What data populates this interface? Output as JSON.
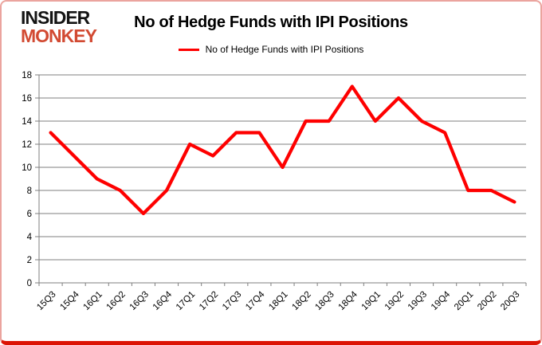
{
  "logo": {
    "line1": "INSIDER",
    "line2": "MONKEY",
    "line1_color": "#141414",
    "line2_color": "#d24a32"
  },
  "chart_data": {
    "type": "line",
    "title": "No of Hedge Funds with IPI Positions",
    "legend_position": "top",
    "categories": [
      "15Q3",
      "15Q4",
      "16Q1",
      "16Q2",
      "16Q3",
      "16Q4",
      "17Q1",
      "17Q2",
      "17Q3",
      "17Q4",
      "18Q1",
      "18Q2",
      "18Q3",
      "18Q4",
      "19Q1",
      "19Q2",
      "19Q3",
      "19Q4",
      "20Q1",
      "20Q2",
      "20Q3"
    ],
    "series": [
      {
        "name": "No of Hedge Funds with IPI Positions",
        "color": "#fe0000",
        "values": [
          13,
          11,
          9,
          8,
          6,
          8,
          12,
          11,
          13,
          13,
          10,
          14,
          14,
          17,
          14,
          16,
          14,
          13,
          8,
          8,
          7
        ]
      }
    ],
    "ylim": [
      0,
      18
    ],
    "ytick_step": 2,
    "grid": true,
    "gridline_color": "#7f7f7f",
    "axis_color": "#7f7f7f",
    "tick_label_color": "#000000"
  }
}
